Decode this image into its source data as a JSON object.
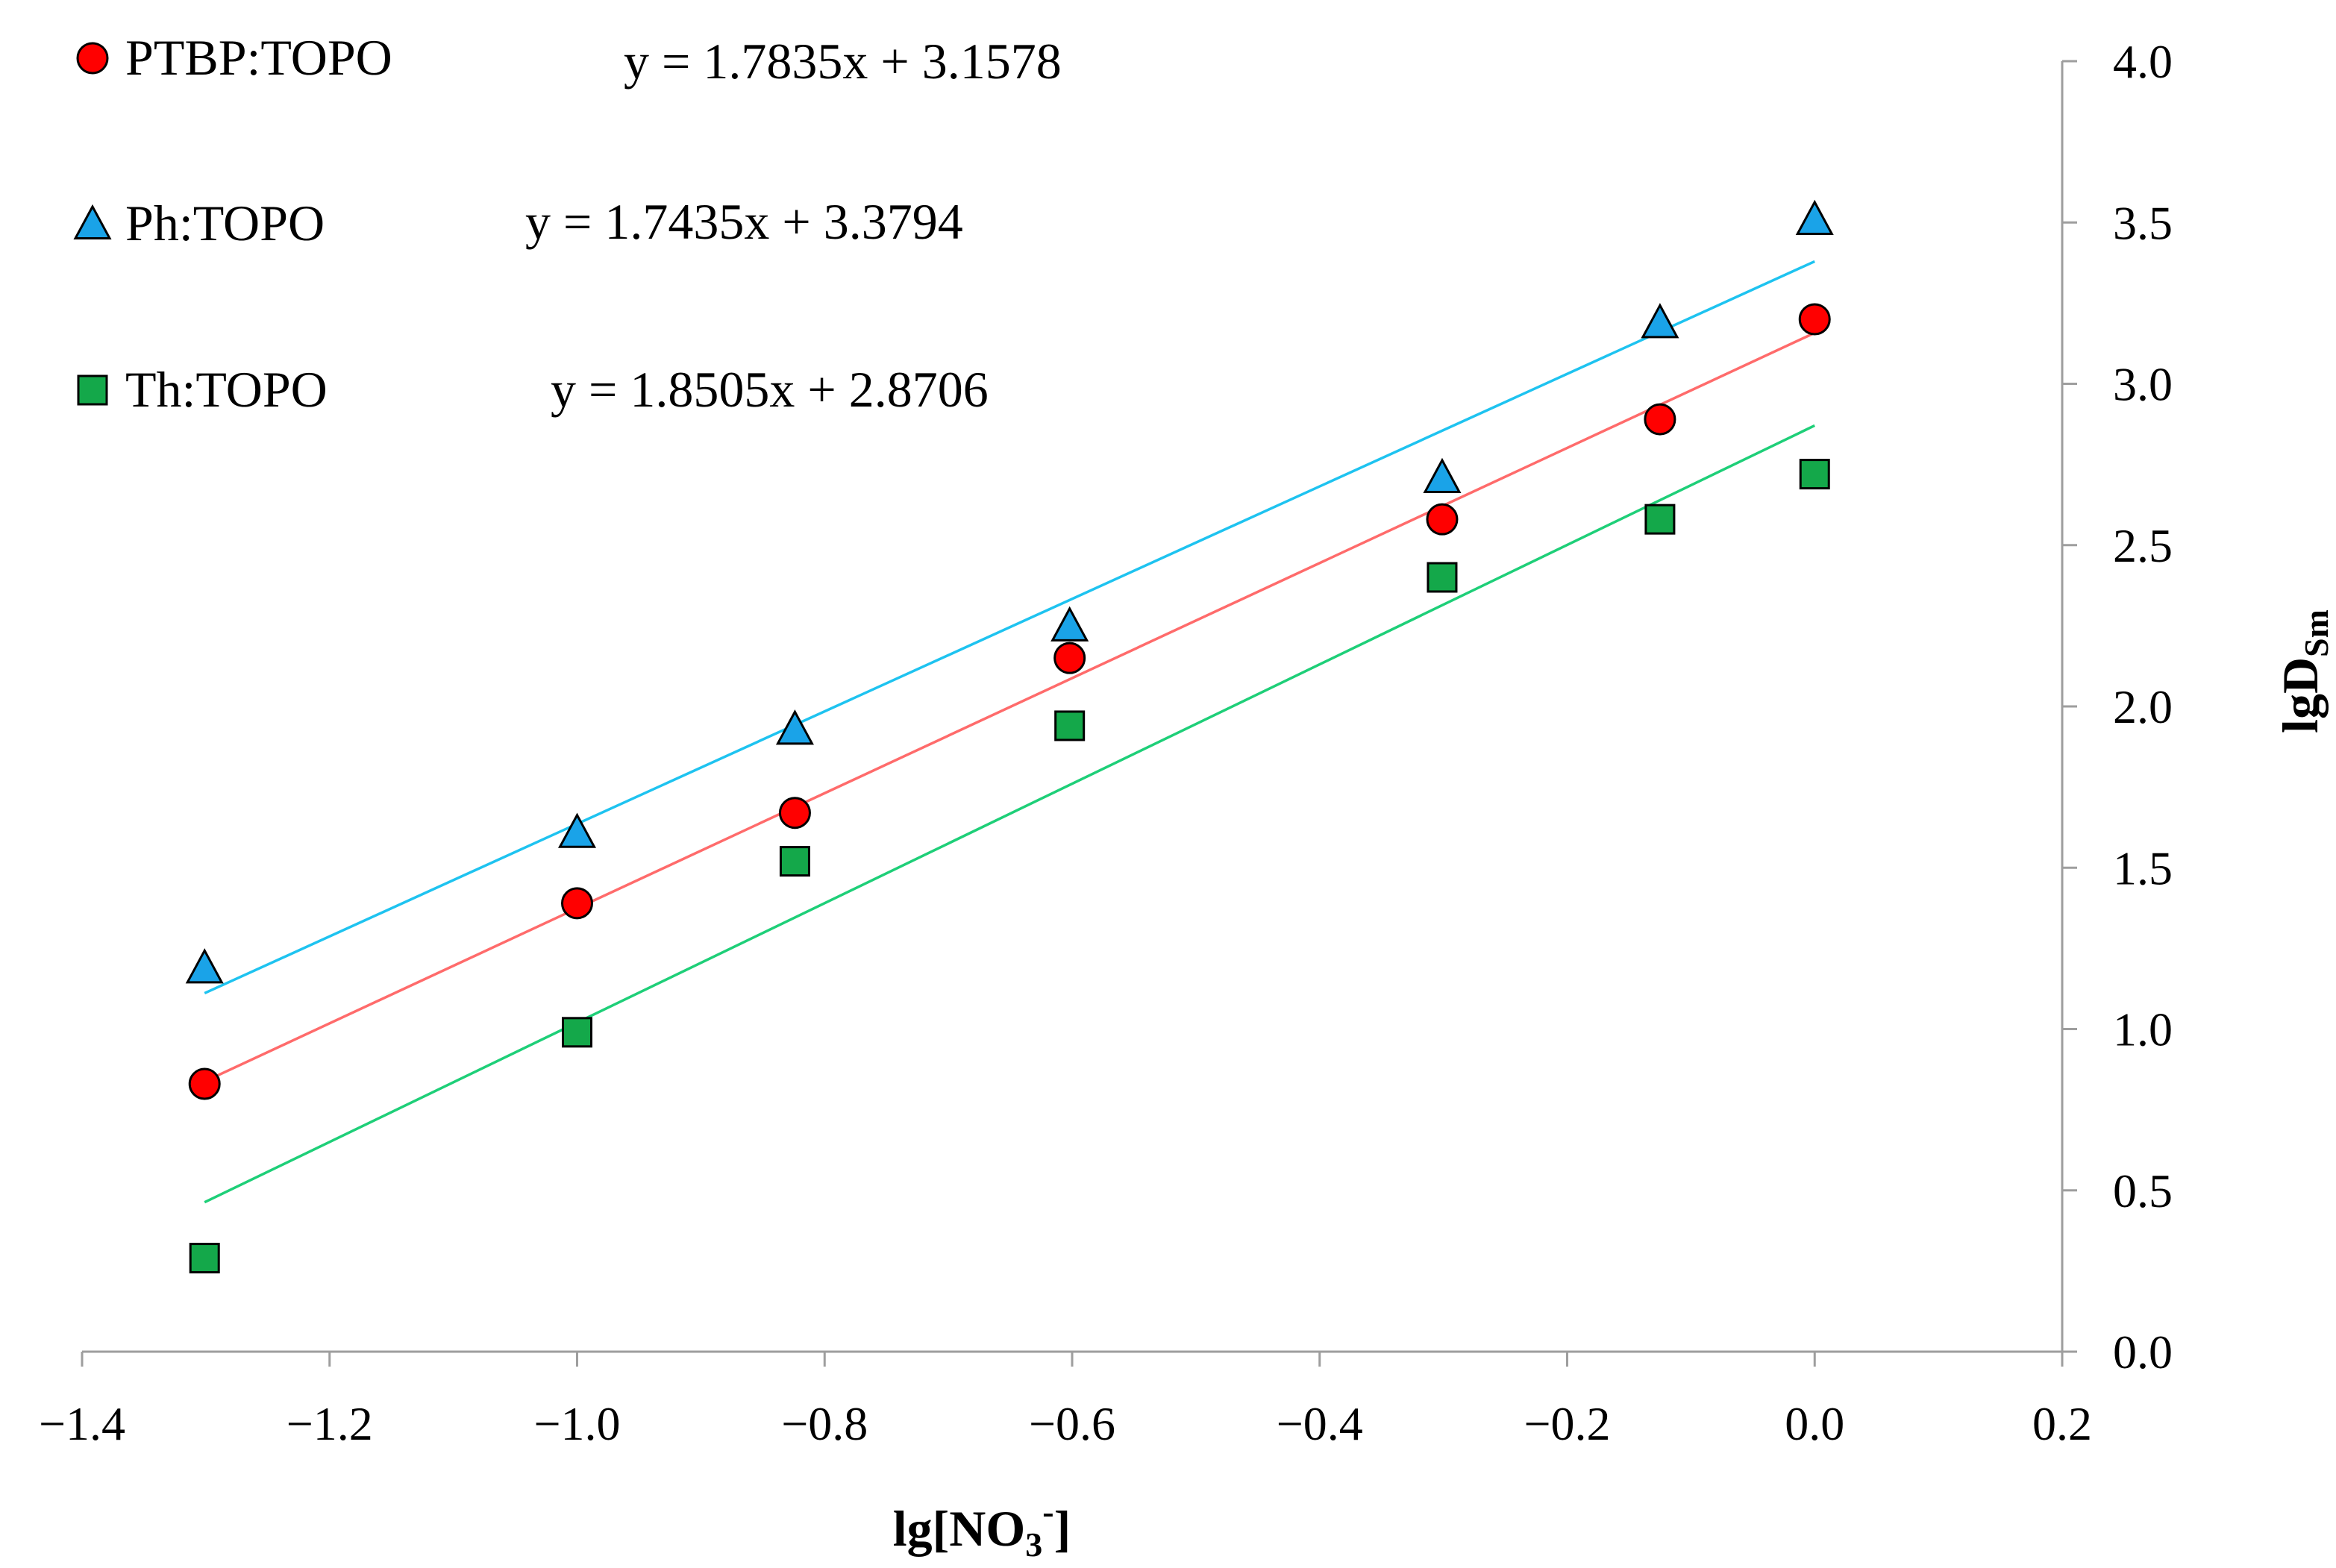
{
  "chart_data": {
    "type": "scatter",
    "title": "",
    "xlabel": {
      "base": "lg[NO",
      "sub": "3",
      "sup": "-",
      "close": "]"
    },
    "ylabel": {
      "base": "lgD",
      "sub": "Sm"
    },
    "xlim": [
      -1.4,
      0.2
    ],
    "ylim": [
      0.0,
      4.0
    ],
    "xticks": [
      -1.4,
      -1.2,
      -1.0,
      -0.8,
      -0.6,
      -0.4,
      -0.2,
      0.0,
      0.2
    ],
    "yticks": [
      0.0,
      0.5,
      1.0,
      1.5,
      2.0,
      2.5,
      3.0,
      3.5,
      4.0
    ],
    "xtick_labels": [
      "−1.4",
      "−1.2",
      "−1.0",
      "−0.8",
      "−0.6",
      "−0.4",
      "−0.2",
      "0.0",
      "0.2"
    ],
    "ytick_labels": [
      "0.0",
      "0.5",
      "1.0",
      "1.5",
      "2.0",
      "2.5",
      "3.0",
      "3.5",
      "4.0"
    ],
    "y_axis_side": "right",
    "grid": false,
    "legend_position": "top-left",
    "series": [
      {
        "name": "PTBP:TOPO",
        "marker": "circle",
        "color": "#ff0000",
        "line_color": "#ff6b6b",
        "equation": "y = 1.7835x + 3.1578",
        "slope": 1.7835,
        "intercept": 3.1578,
        "x": [
          -1.301,
          -1.0,
          -0.824,
          -0.602,
          -0.301,
          -0.125,
          0.0
        ],
        "y": [
          0.83,
          1.39,
          1.67,
          2.15,
          2.58,
          2.89,
          3.2
        ]
      },
      {
        "name": "Ph:TOPO",
        "marker": "triangle",
        "color": "#1aa3e8",
        "line_color": "#1ec3f0",
        "equation": "y = 1.7435x + 3.3794",
        "slope": 1.7435,
        "intercept": 3.3794,
        "x": [
          -1.301,
          -1.0,
          -0.824,
          -0.602,
          -0.301,
          -0.125,
          0.0
        ],
        "y": [
          1.19,
          1.61,
          1.93,
          2.25,
          2.71,
          3.19,
          3.51
        ]
      },
      {
        "name": "Th:TOPO",
        "marker": "square",
        "color": "#14a84a",
        "line_color": "#1ecf78",
        "equation": "y = 1.8505x + 2.8706",
        "slope": 1.8505,
        "intercept": 2.8706,
        "x": [
          -1.301,
          -1.0,
          -0.824,
          -0.602,
          -0.301,
          -0.125,
          0.0
        ],
        "y": [
          0.29,
          0.99,
          1.52,
          1.94,
          2.4,
          2.58,
          2.72
        ]
      }
    ]
  }
}
